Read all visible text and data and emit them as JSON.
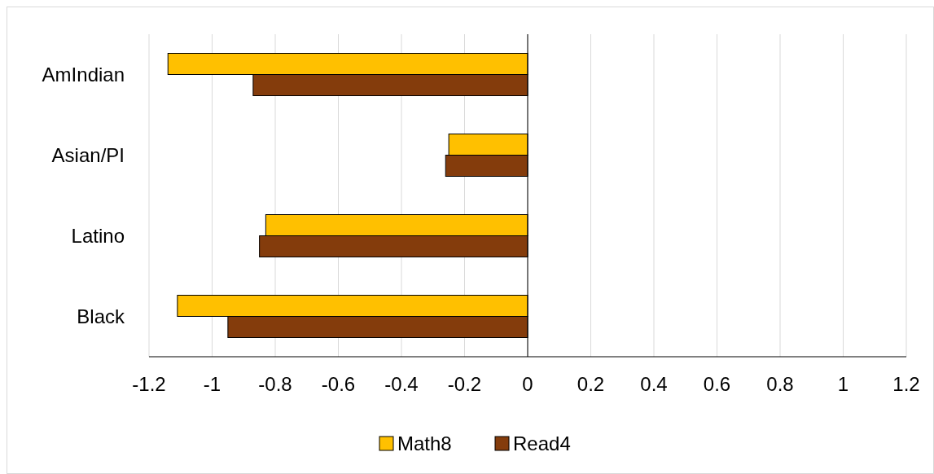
{
  "chart_data": {
    "type": "bar",
    "orientation": "horizontal",
    "categories": [
      "AmIndian",
      "Asian/PI",
      "Latino",
      "Black"
    ],
    "series": [
      {
        "name": "Math8",
        "color": "#ffc000",
        "values": [
          -1.14,
          -0.25,
          -0.83,
          -1.11
        ]
      },
      {
        "name": "Read4",
        "color": "#843c0c",
        "values": [
          -0.87,
          -0.26,
          -0.85,
          -0.95
        ]
      }
    ],
    "xlim": [
      -1.2,
      1.2
    ],
    "xticks": [
      -1.2,
      -1,
      -0.8,
      -0.6,
      -0.4,
      -0.2,
      0,
      0.2,
      0.4,
      0.6,
      0.8,
      1,
      1.2
    ],
    "grid": "x",
    "legend": "bottom"
  }
}
